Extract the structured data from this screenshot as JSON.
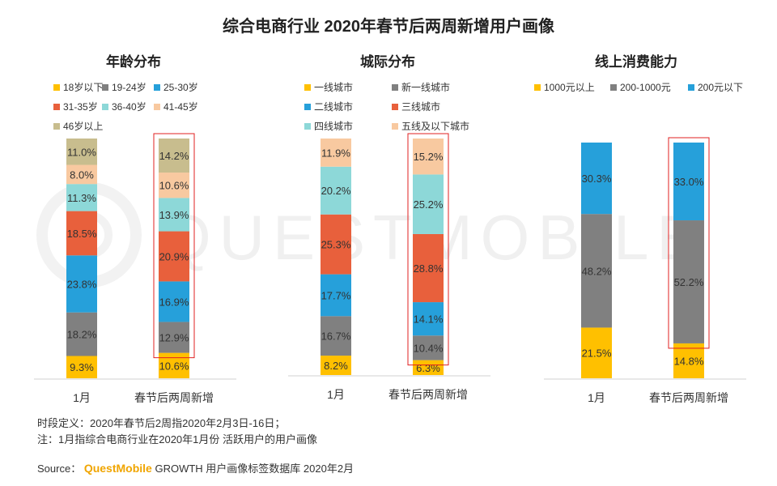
{
  "title": "综合电商行业 2020年春节后两周新增用户画像",
  "watermark": "QUESTMOBILE",
  "footnotes": [
    "时段定义：2020年春节后2周指2020年2月3日-16日；",
    "注：1月指综合电商行业在2020年1月份 活跃用户的用户画像"
  ],
  "source": {
    "label": "Source：",
    "brand": "QuestMobile",
    "text": "GROWTH 用户画像标签数据库 2020年2月"
  },
  "chart_data": [
    {
      "type": "bar",
      "stacked": true,
      "title": "年龄分布",
      "categories": [
        "1月",
        "春节后两周新增"
      ],
      "highlight": "春节后两周新增",
      "series": [
        {
          "name": "18岁以下",
          "color": "#FFC000",
          "values": [
            9.3,
            10.6
          ]
        },
        {
          "name": "19-24岁",
          "color": "#808080",
          "values": [
            18.2,
            12.9
          ]
        },
        {
          "name": "25-30岁",
          "color": "#26A0DA",
          "values": [
            23.8,
            16.9
          ]
        },
        {
          "name": "31-35岁",
          "color": "#E8603C",
          "values": [
            18.5,
            20.9
          ]
        },
        {
          "name": "36-40岁",
          "color": "#8DD8D8",
          "values": [
            11.3,
            13.9
          ]
        },
        {
          "name": "41-45岁",
          "color": "#F8C9A0",
          "values": [
            8.0,
            10.6
          ]
        },
        {
          "name": "46岁以上",
          "color": "#C8BD8E",
          "values": [
            11.0,
            14.2
          ]
        }
      ],
      "ylim": [
        0,
        100
      ]
    },
    {
      "type": "bar",
      "stacked": true,
      "title": "城际分布",
      "categories": [
        "1月",
        "春节后两周新增"
      ],
      "highlight": "春节后两周新增",
      "series": [
        {
          "name": "一线城市",
          "color": "#FFC000",
          "values": [
            8.2,
            6.3
          ]
        },
        {
          "name": "新一线城市",
          "color": "#808080",
          "values": [
            16.7,
            10.4
          ]
        },
        {
          "name": "二线城市",
          "color": "#26A0DA",
          "values": [
            17.7,
            14.1
          ]
        },
        {
          "name": "三线城市",
          "color": "#E8603C",
          "values": [
            25.3,
            28.8
          ]
        },
        {
          "name": "四线城市",
          "color": "#8DD8D8",
          "values": [
            20.2,
            25.2
          ]
        },
        {
          "name": "五线及以下城市",
          "color": "#F8C9A0",
          "values": [
            11.9,
            15.2
          ]
        }
      ],
      "ylim": [
        0,
        100
      ]
    },
    {
      "type": "bar",
      "stacked": true,
      "title": "线上消费能力",
      "categories": [
        "1月",
        "春节后两周新增"
      ],
      "highlight": "春节后两周新增",
      "series": [
        {
          "name": "1000元以上",
          "color": "#FFC000",
          "values": [
            21.5,
            14.8
          ]
        },
        {
          "name": "200-1000元",
          "color": "#808080",
          "values": [
            48.2,
            52.2
          ]
        },
        {
          "name": "200元以下",
          "color": "#26A0DA",
          "values": [
            30.3,
            33.0
          ]
        }
      ],
      "ylim": [
        0,
        100
      ]
    }
  ]
}
